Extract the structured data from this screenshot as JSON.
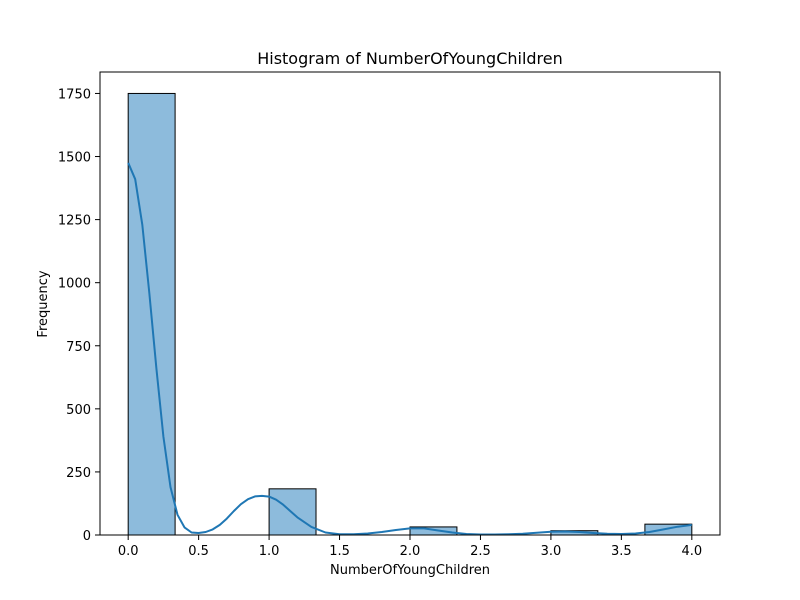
{
  "chart_data": {
    "type": "bar",
    "title": "Histogram of NumberOfYoungChildren",
    "xlabel": "NumberOfYoungChildren",
    "ylabel": "Frequency",
    "xlim": [
      -0.2,
      4.2
    ],
    "ylim": [
      0,
      1835
    ],
    "xticks": [
      "0.0",
      "0.5",
      "1.0",
      "1.5",
      "2.0",
      "2.5",
      "3.0",
      "3.5",
      "4.0"
    ],
    "xtick_values": [
      0,
      0.5,
      1.0,
      1.5,
      2.0,
      2.5,
      3.0,
      3.5,
      4.0
    ],
    "yticks": [
      "0",
      "250",
      "500",
      "750",
      "1000",
      "1250",
      "1500",
      "1750"
    ],
    "ytick_values": [
      0,
      250,
      500,
      750,
      1000,
      1250,
      1500,
      1750
    ],
    "bins": [
      {
        "start": 0.0,
        "end": 0.333,
        "count": 1750
      },
      {
        "start": 1.0,
        "end": 1.333,
        "count": 183
      },
      {
        "start": 2.0,
        "end": 2.333,
        "count": 32
      },
      {
        "start": 3.0,
        "end": 3.333,
        "count": 17
      },
      {
        "start": 3.667,
        "end": 4.0,
        "count": 43
      }
    ],
    "kde": {
      "x": [
        0.0,
        0.05,
        0.1,
        0.15,
        0.2,
        0.25,
        0.3,
        0.35,
        0.4,
        0.45,
        0.5,
        0.55,
        0.6,
        0.65,
        0.7,
        0.75,
        0.8,
        0.85,
        0.9,
        0.95,
        1.0,
        1.05,
        1.1,
        1.15,
        1.2,
        1.3,
        1.4,
        1.5,
        1.6,
        1.7,
        1.8,
        1.9,
        2.0,
        2.1,
        2.2,
        2.3,
        2.4,
        2.5,
        2.6,
        2.7,
        2.8,
        2.9,
        3.0,
        3.1,
        3.2,
        3.3,
        3.4,
        3.5,
        3.6,
        3.7,
        3.8,
        3.9,
        4.0
      ],
      "y": [
        1475,
        1410,
        1230,
        960,
        660,
        390,
        190,
        80,
        30,
        10,
        8,
        12,
        22,
        40,
        65,
        95,
        122,
        142,
        153,
        155,
        152,
        140,
        120,
        95,
        70,
        32,
        10,
        3,
        3,
        6,
        12,
        20,
        26,
        26,
        18,
        10,
        4,
        2,
        2,
        3,
        5,
        9,
        13,
        14,
        12,
        8,
        5,
        4,
        6,
        12,
        22,
        33,
        40
      ]
    },
    "colors": {
      "bar_fill": "#8dbbdc",
      "bar_edge": "#000000",
      "kde_line": "#1f77b4"
    },
    "grid": false,
    "legend": "none"
  }
}
